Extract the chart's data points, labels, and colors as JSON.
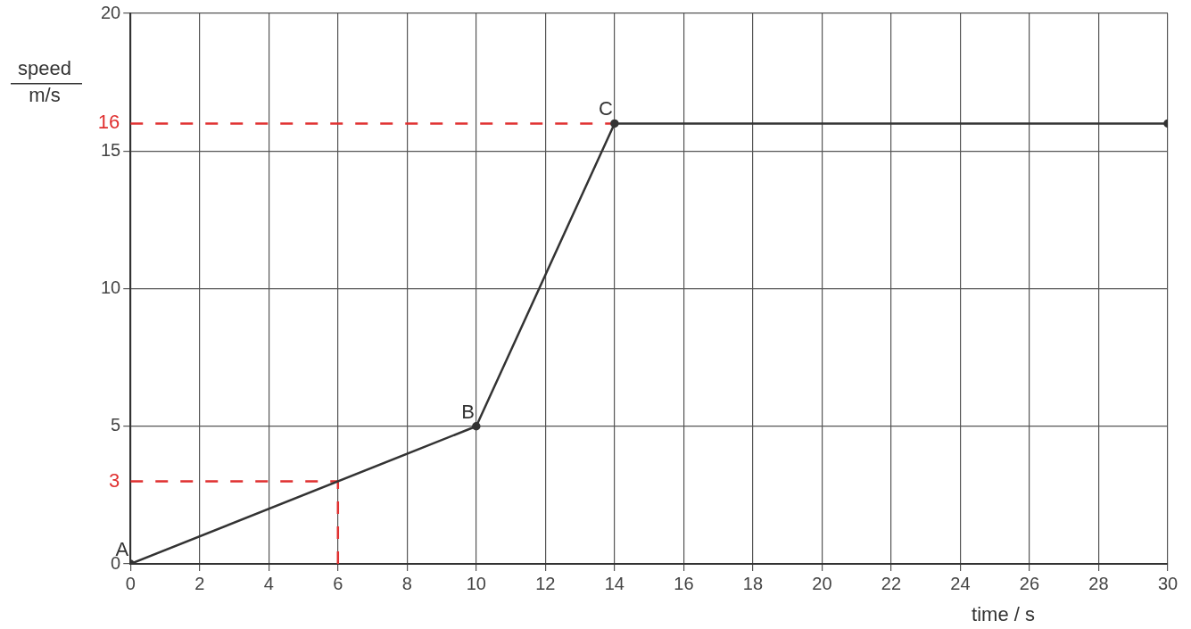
{
  "chart_data": {
    "type": "line",
    "xlabel": "time / s",
    "ylabel": "speed\nm/s",
    "x": [
      0,
      10,
      14,
      30
    ],
    "series": [
      {
        "values": [
          0,
          5,
          16,
          16
        ],
        "color": "#333333",
        "marker": "circle",
        "line_style": "solid"
      },
      {
        "x": [
          0,
          14
        ],
        "values": [
          16,
          16
        ],
        "color": "#e03030",
        "marker": "none",
        "line_style": "dashed"
      },
      {
        "x": [
          0,
          6
        ],
        "values": [
          3,
          3
        ],
        "color": "#e03030",
        "marker": "none",
        "line_style": "dashed"
      },
      {
        "x": [
          6,
          6
        ],
        "values": [
          0,
          3
        ],
        "color": "#e03030",
        "marker": "none",
        "line_style": "dashed"
      }
    ],
    "annotations": [
      {
        "text": "A",
        "x": 0,
        "y": 0
      },
      {
        "text": "B",
        "x": 10,
        "y": 5
      },
      {
        "text": "C",
        "x": 14,
        "y": 16
      },
      {
        "text": "16",
        "x": 0,
        "y": 16
      },
      {
        "text": "3",
        "x": 0,
        "y": 3
      }
    ],
    "xlim": [
      0,
      30
    ],
    "xticks": [
      0,
      2,
      4,
      6,
      8,
      10,
      12,
      14,
      16,
      18,
      20,
      22,
      24,
      26,
      28,
      30
    ],
    "ylim": [
      0,
      20
    ],
    "yticks": [
      0,
      5,
      10,
      15,
      20
    ],
    "grid": true,
    "legend": false
  }
}
